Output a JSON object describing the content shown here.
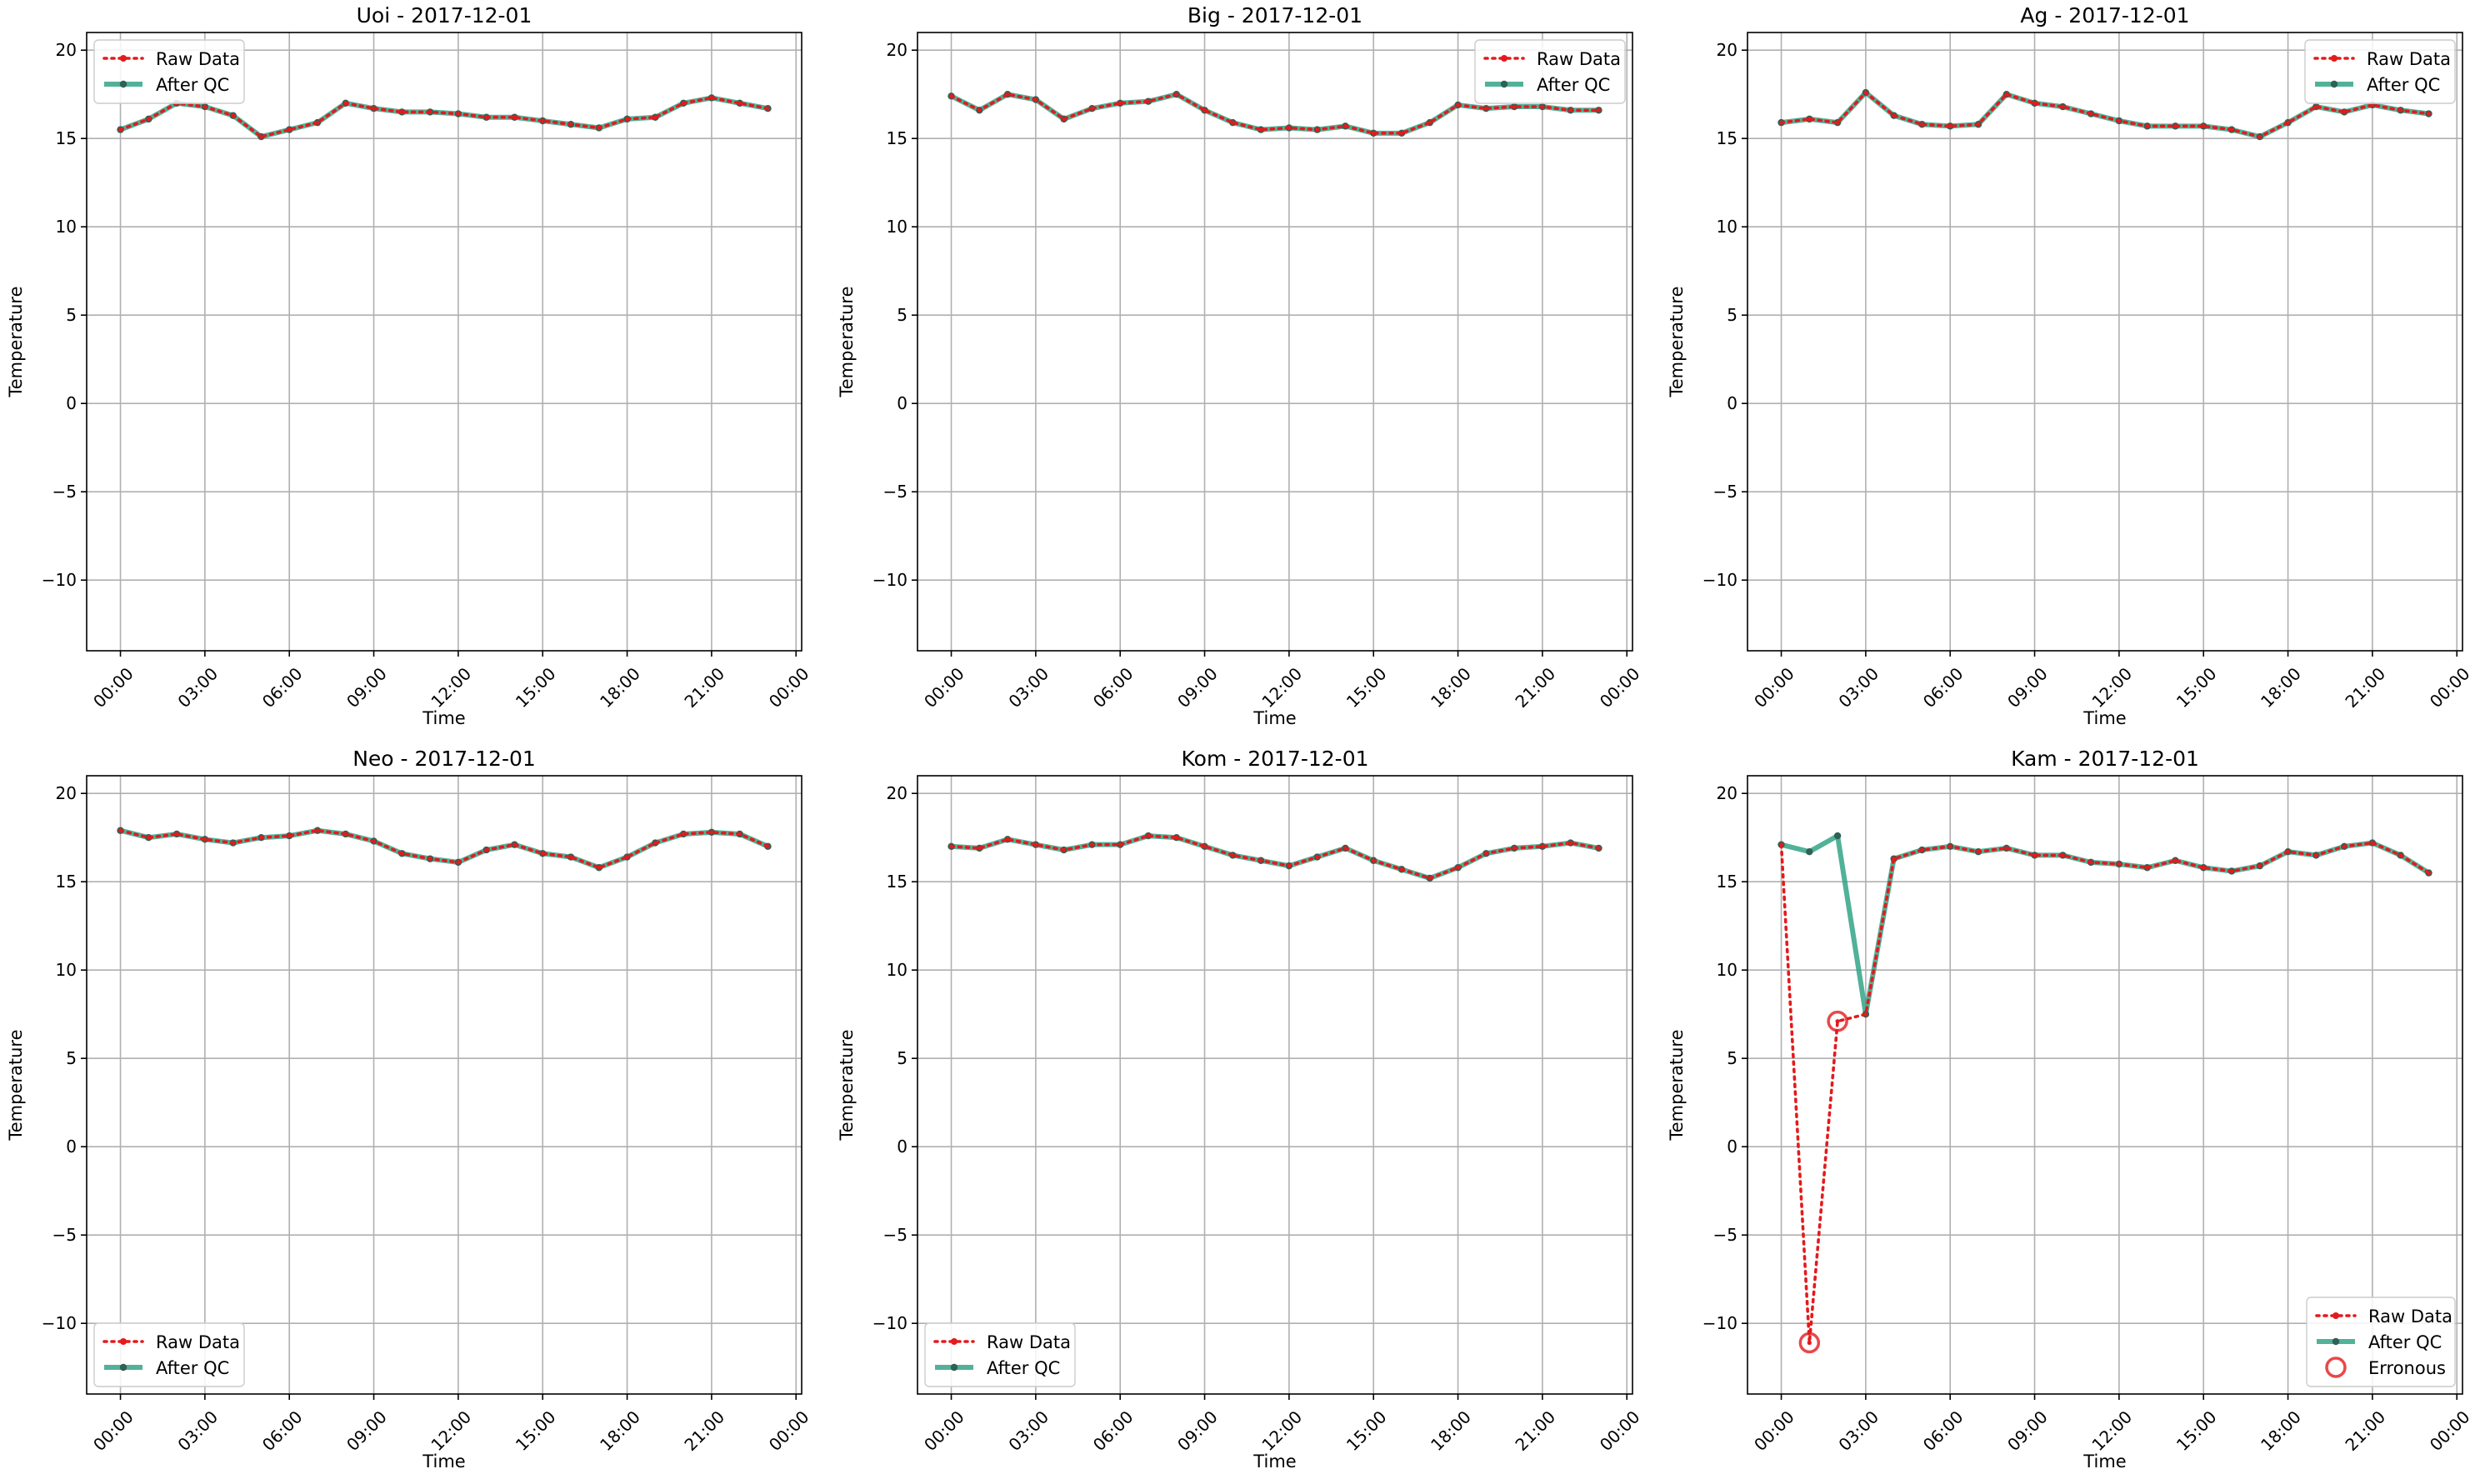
{
  "style": {
    "raw_color": "#e41a1c",
    "qc_color": "#2ca083",
    "marker_color": "#2f6155",
    "erroneous_color": "#e41a1c",
    "grid_color": "#b0b0b0",
    "axes_color": "#000000"
  },
  "chart_data": [
    {
      "type": "line",
      "title": "Uoi - 2017-12-01",
      "xlabel": "Time",
      "ylabel": "Temperature",
      "x_ticks": [
        "00:00",
        "03:00",
        "06:00",
        "09:00",
        "12:00",
        "15:00",
        "18:00",
        "21:00",
        "00:00"
      ],
      "xlim_hours": [
        -1.2,
        24.2
      ],
      "ylim": [
        -14,
        21
      ],
      "y_ticks": [
        "−10",
        "−5",
        "0",
        "5",
        "10",
        "15",
        "20"
      ],
      "grid": true,
      "legend_position": "upper-left",
      "legend": [
        "Raw Data",
        "After QC"
      ],
      "x_hours": [
        0,
        1,
        2,
        3,
        4,
        5,
        6,
        7,
        8,
        9,
        10,
        11,
        12,
        13,
        14,
        15,
        16,
        17,
        18,
        19,
        20,
        21,
        22,
        23
      ],
      "series": [
        {
          "name": "Raw Data",
          "values": [
            15.5,
            16.1,
            17.0,
            16.8,
            16.3,
            15.1,
            15.5,
            15.9,
            17.0,
            16.7,
            16.5,
            16.5,
            16.4,
            16.2,
            16.2,
            16.0,
            15.8,
            15.6,
            16.1,
            16.2,
            17.0,
            17.3,
            17.0,
            16.7
          ]
        },
        {
          "name": "After QC",
          "values": [
            15.5,
            16.1,
            17.0,
            16.8,
            16.3,
            15.1,
            15.5,
            15.9,
            17.0,
            16.7,
            16.5,
            16.5,
            16.4,
            16.2,
            16.2,
            16.0,
            15.8,
            15.6,
            16.1,
            16.2,
            17.0,
            17.3,
            17.0,
            16.7
          ]
        }
      ]
    },
    {
      "type": "line",
      "title": "Big - 2017-12-01",
      "xlabel": "Time",
      "ylabel": "Temperature",
      "x_ticks": [
        "00:00",
        "03:00",
        "06:00",
        "09:00",
        "12:00",
        "15:00",
        "18:00",
        "21:00",
        "00:00"
      ],
      "xlim_hours": [
        -1.2,
        24.2
      ],
      "ylim": [
        -14,
        21
      ],
      "y_ticks": [
        "−10",
        "−5",
        "0",
        "5",
        "10",
        "15",
        "20"
      ],
      "grid": true,
      "legend_position": "upper-right",
      "legend": [
        "Raw Data",
        "After QC"
      ],
      "x_hours": [
        0,
        1,
        2,
        3,
        4,
        5,
        6,
        7,
        8,
        9,
        10,
        11,
        12,
        13,
        14,
        15,
        16,
        17,
        18,
        19,
        20,
        21,
        22,
        23
      ],
      "series": [
        {
          "name": "Raw Data",
          "values": [
            17.4,
            16.6,
            17.5,
            17.2,
            16.1,
            16.7,
            17.0,
            17.1,
            17.5,
            16.6,
            15.9,
            15.5,
            15.6,
            15.5,
            15.7,
            15.3,
            15.3,
            15.9,
            16.9,
            16.7,
            16.8,
            16.8,
            16.6,
            16.6
          ]
        },
        {
          "name": "After QC",
          "values": [
            17.4,
            16.6,
            17.5,
            17.2,
            16.1,
            16.7,
            17.0,
            17.1,
            17.5,
            16.6,
            15.9,
            15.5,
            15.6,
            15.5,
            15.7,
            15.3,
            15.3,
            15.9,
            16.9,
            16.7,
            16.8,
            16.8,
            16.6,
            16.6
          ]
        }
      ]
    },
    {
      "type": "line",
      "title": "Ag - 2017-12-01",
      "xlabel": "Time",
      "ylabel": "Temperature",
      "x_ticks": [
        "00:00",
        "03:00",
        "06:00",
        "09:00",
        "12:00",
        "15:00",
        "18:00",
        "21:00",
        "00:00"
      ],
      "xlim_hours": [
        -1.2,
        24.2
      ],
      "ylim": [
        -14,
        21
      ],
      "y_ticks": [
        "−10",
        "−5",
        "0",
        "5",
        "10",
        "15",
        "20"
      ],
      "grid": true,
      "legend_position": "upper-right",
      "legend": [
        "Raw Data",
        "After QC"
      ],
      "x_hours": [
        0,
        1,
        2,
        3,
        4,
        5,
        6,
        7,
        8,
        9,
        10,
        11,
        12,
        13,
        14,
        15,
        16,
        17,
        18,
        19,
        20,
        21,
        22,
        23
      ],
      "series": [
        {
          "name": "Raw Data",
          "values": [
            15.9,
            16.1,
            15.9,
            17.6,
            16.3,
            15.8,
            15.7,
            15.8,
            17.5,
            17.0,
            16.8,
            16.4,
            16.0,
            15.7,
            15.7,
            15.7,
            15.5,
            15.1,
            15.9,
            16.8,
            16.5,
            16.9,
            16.6,
            16.4
          ]
        },
        {
          "name": "After QC",
          "values": [
            15.9,
            16.1,
            15.9,
            17.6,
            16.3,
            15.8,
            15.7,
            15.8,
            17.5,
            17.0,
            16.8,
            16.4,
            16.0,
            15.7,
            15.7,
            15.7,
            15.5,
            15.1,
            15.9,
            16.8,
            16.5,
            16.9,
            16.6,
            16.4
          ]
        }
      ]
    },
    {
      "type": "line",
      "title": "Neo - 2017-12-01",
      "xlabel": "Time",
      "ylabel": "Temperature",
      "x_ticks": [
        "00:00",
        "03:00",
        "06:00",
        "09:00",
        "12:00",
        "15:00",
        "18:00",
        "21:00",
        "00:00"
      ],
      "xlim_hours": [
        -1.2,
        24.2
      ],
      "ylim": [
        -14,
        21
      ],
      "y_ticks": [
        "−10",
        "−5",
        "0",
        "5",
        "10",
        "15",
        "20"
      ],
      "grid": true,
      "legend_position": "lower-left",
      "legend": [
        "Raw Data",
        "After QC"
      ],
      "x_hours": [
        0,
        1,
        2,
        3,
        4,
        5,
        6,
        7,
        8,
        9,
        10,
        11,
        12,
        13,
        14,
        15,
        16,
        17,
        18,
        19,
        20,
        21,
        22,
        23
      ],
      "series": [
        {
          "name": "Raw Data",
          "values": [
            17.9,
            17.5,
            17.7,
            17.4,
            17.2,
            17.5,
            17.6,
            17.9,
            17.7,
            17.3,
            16.6,
            16.3,
            16.1,
            16.8,
            17.1,
            16.6,
            16.4,
            15.8,
            16.4,
            17.2,
            17.7,
            17.8,
            17.7,
            17.0
          ]
        },
        {
          "name": "After QC",
          "values": [
            17.9,
            17.5,
            17.7,
            17.4,
            17.2,
            17.5,
            17.6,
            17.9,
            17.7,
            17.3,
            16.6,
            16.3,
            16.1,
            16.8,
            17.1,
            16.6,
            16.4,
            15.8,
            16.4,
            17.2,
            17.7,
            17.8,
            17.7,
            17.0
          ]
        }
      ]
    },
    {
      "type": "line",
      "title": "Kom - 2017-12-01",
      "xlabel": "Time",
      "ylabel": "Temperature",
      "x_ticks": [
        "00:00",
        "03:00",
        "06:00",
        "09:00",
        "12:00",
        "15:00",
        "18:00",
        "21:00",
        "00:00"
      ],
      "xlim_hours": [
        -1.2,
        24.2
      ],
      "ylim": [
        -14,
        21
      ],
      "y_ticks": [
        "−10",
        "−5",
        "0",
        "5",
        "10",
        "15",
        "20"
      ],
      "grid": true,
      "legend_position": "lower-left",
      "legend": [
        "Raw Data",
        "After QC"
      ],
      "x_hours": [
        0,
        1,
        2,
        3,
        4,
        5,
        6,
        7,
        8,
        9,
        10,
        11,
        12,
        13,
        14,
        15,
        16,
        17,
        18,
        19,
        20,
        21,
        22,
        23
      ],
      "series": [
        {
          "name": "Raw Data",
          "values": [
            17.0,
            16.9,
            17.4,
            17.1,
            16.8,
            17.1,
            17.1,
            17.6,
            17.5,
            17.0,
            16.5,
            16.2,
            15.9,
            16.4,
            16.9,
            16.2,
            15.7,
            15.2,
            15.8,
            16.6,
            16.9,
            17.0,
            17.2,
            16.9
          ]
        },
        {
          "name": "After QC",
          "values": [
            17.0,
            16.9,
            17.4,
            17.1,
            16.8,
            17.1,
            17.1,
            17.6,
            17.5,
            17.0,
            16.5,
            16.2,
            15.9,
            16.4,
            16.9,
            16.2,
            15.7,
            15.2,
            15.8,
            16.6,
            16.9,
            17.0,
            17.2,
            16.9
          ]
        }
      ]
    },
    {
      "type": "line",
      "title": "Kam - 2017-12-01",
      "xlabel": "Time",
      "ylabel": "Temperature",
      "x_ticks": [
        "00:00",
        "03:00",
        "06:00",
        "09:00",
        "12:00",
        "15:00",
        "18:00",
        "21:00",
        "00:00"
      ],
      "xlim_hours": [
        -1.2,
        24.2
      ],
      "ylim": [
        -14,
        21
      ],
      "y_ticks": [
        "−10",
        "−5",
        "0",
        "5",
        "10",
        "15",
        "20"
      ],
      "grid": true,
      "legend_position": "lower-right",
      "legend": [
        "Raw Data",
        "After QC",
        "Erronous"
      ],
      "x_hours": [
        0,
        1,
        2,
        3,
        4,
        5,
        6,
        7,
        8,
        9,
        10,
        11,
        12,
        13,
        14,
        15,
        16,
        17,
        18,
        19,
        20,
        21,
        22,
        23
      ],
      "series": [
        {
          "name": "Raw Data",
          "values": [
            17.1,
            -11.1,
            7.1,
            7.5,
            16.3,
            16.8,
            17.0,
            16.7,
            16.9,
            16.5,
            16.5,
            16.1,
            16.0,
            15.8,
            16.2,
            15.8,
            15.6,
            15.9,
            16.7,
            16.5,
            17.0,
            17.2,
            16.5,
            15.5
          ]
        },
        {
          "name": "After QC",
          "values": [
            17.1,
            16.7,
            17.6,
            7.5,
            16.3,
            16.8,
            17.0,
            16.7,
            16.9,
            16.5,
            16.5,
            16.1,
            16.0,
            15.8,
            16.2,
            15.8,
            15.6,
            15.9,
            16.7,
            16.5,
            17.0,
            17.2,
            16.5,
            15.5
          ]
        }
      ],
      "erroneous": {
        "name": "Erronous",
        "x_hours": [
          1,
          2
        ],
        "values": [
          -11.1,
          7.1
        ]
      }
    }
  ]
}
